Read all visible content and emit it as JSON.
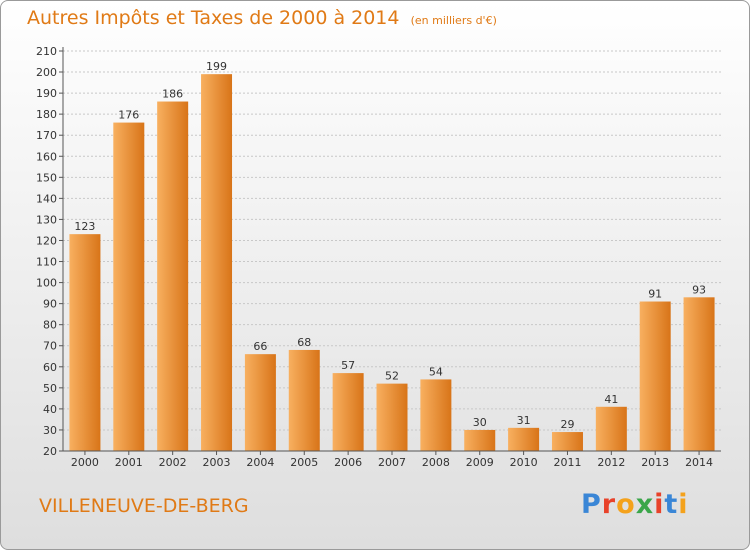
{
  "title": "Autres Impôts et Taxes de 2000 à 2014",
  "unit": "(en milliers d'€)",
  "commune": "VILLENEUVE-DE-BERG",
  "logo": {
    "letters": [
      "P",
      "r",
      "o",
      "x",
      "i",
      "t",
      "i"
    ],
    "colors": [
      "#3a86d6",
      "#e8422a",
      "#f4a21c",
      "#3aa64a",
      "#e8422a",
      "#3a86d6",
      "#f4a21c"
    ]
  },
  "colors": {
    "accent": "#e07a16",
    "bar_light": "#f8b060",
    "bar_dark": "#d87418"
  },
  "chart_data": {
    "type": "bar",
    "categories": [
      "2000",
      "2001",
      "2002",
      "2003",
      "2004",
      "2005",
      "2006",
      "2007",
      "2008",
      "2009",
      "2010",
      "2011",
      "2012",
      "2013",
      "2014"
    ],
    "values": [
      123,
      176,
      186,
      199,
      66,
      68,
      57,
      52,
      54,
      30,
      31,
      29,
      41,
      91,
      93
    ],
    "ylim": [
      20,
      210
    ],
    "yticks": [
      20,
      30,
      40,
      50,
      60,
      70,
      80,
      90,
      100,
      110,
      120,
      130,
      140,
      150,
      160,
      170,
      180,
      190,
      200,
      210
    ],
    "grid": true,
    "legend": "none"
  }
}
